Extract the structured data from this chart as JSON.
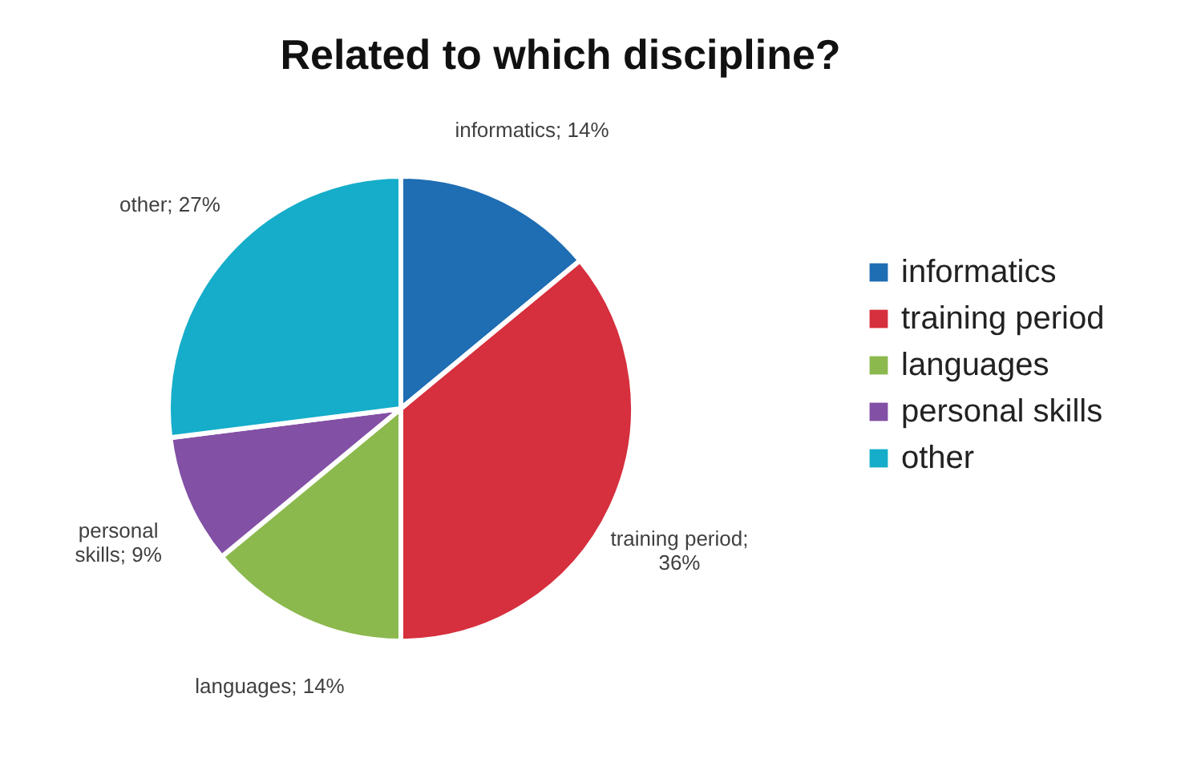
{
  "chart_data": {
    "type": "pie",
    "title": "Related to which discipline?",
    "categories": [
      "informatics",
      "training period",
      "languages",
      "personal skills",
      "other"
    ],
    "values": [
      14,
      36,
      14,
      9,
      27
    ],
    "colors": [
      "#1f6db3",
      "#d62f3d",
      "#8cb94e",
      "#8250a5",
      "#15adc9"
    ],
    "value_labels": [
      "informatics; 14%",
      "training period;\n36%",
      "languages; 14%",
      "personal\nskills; 9%",
      "other; 27%"
    ],
    "legend": "right"
  }
}
